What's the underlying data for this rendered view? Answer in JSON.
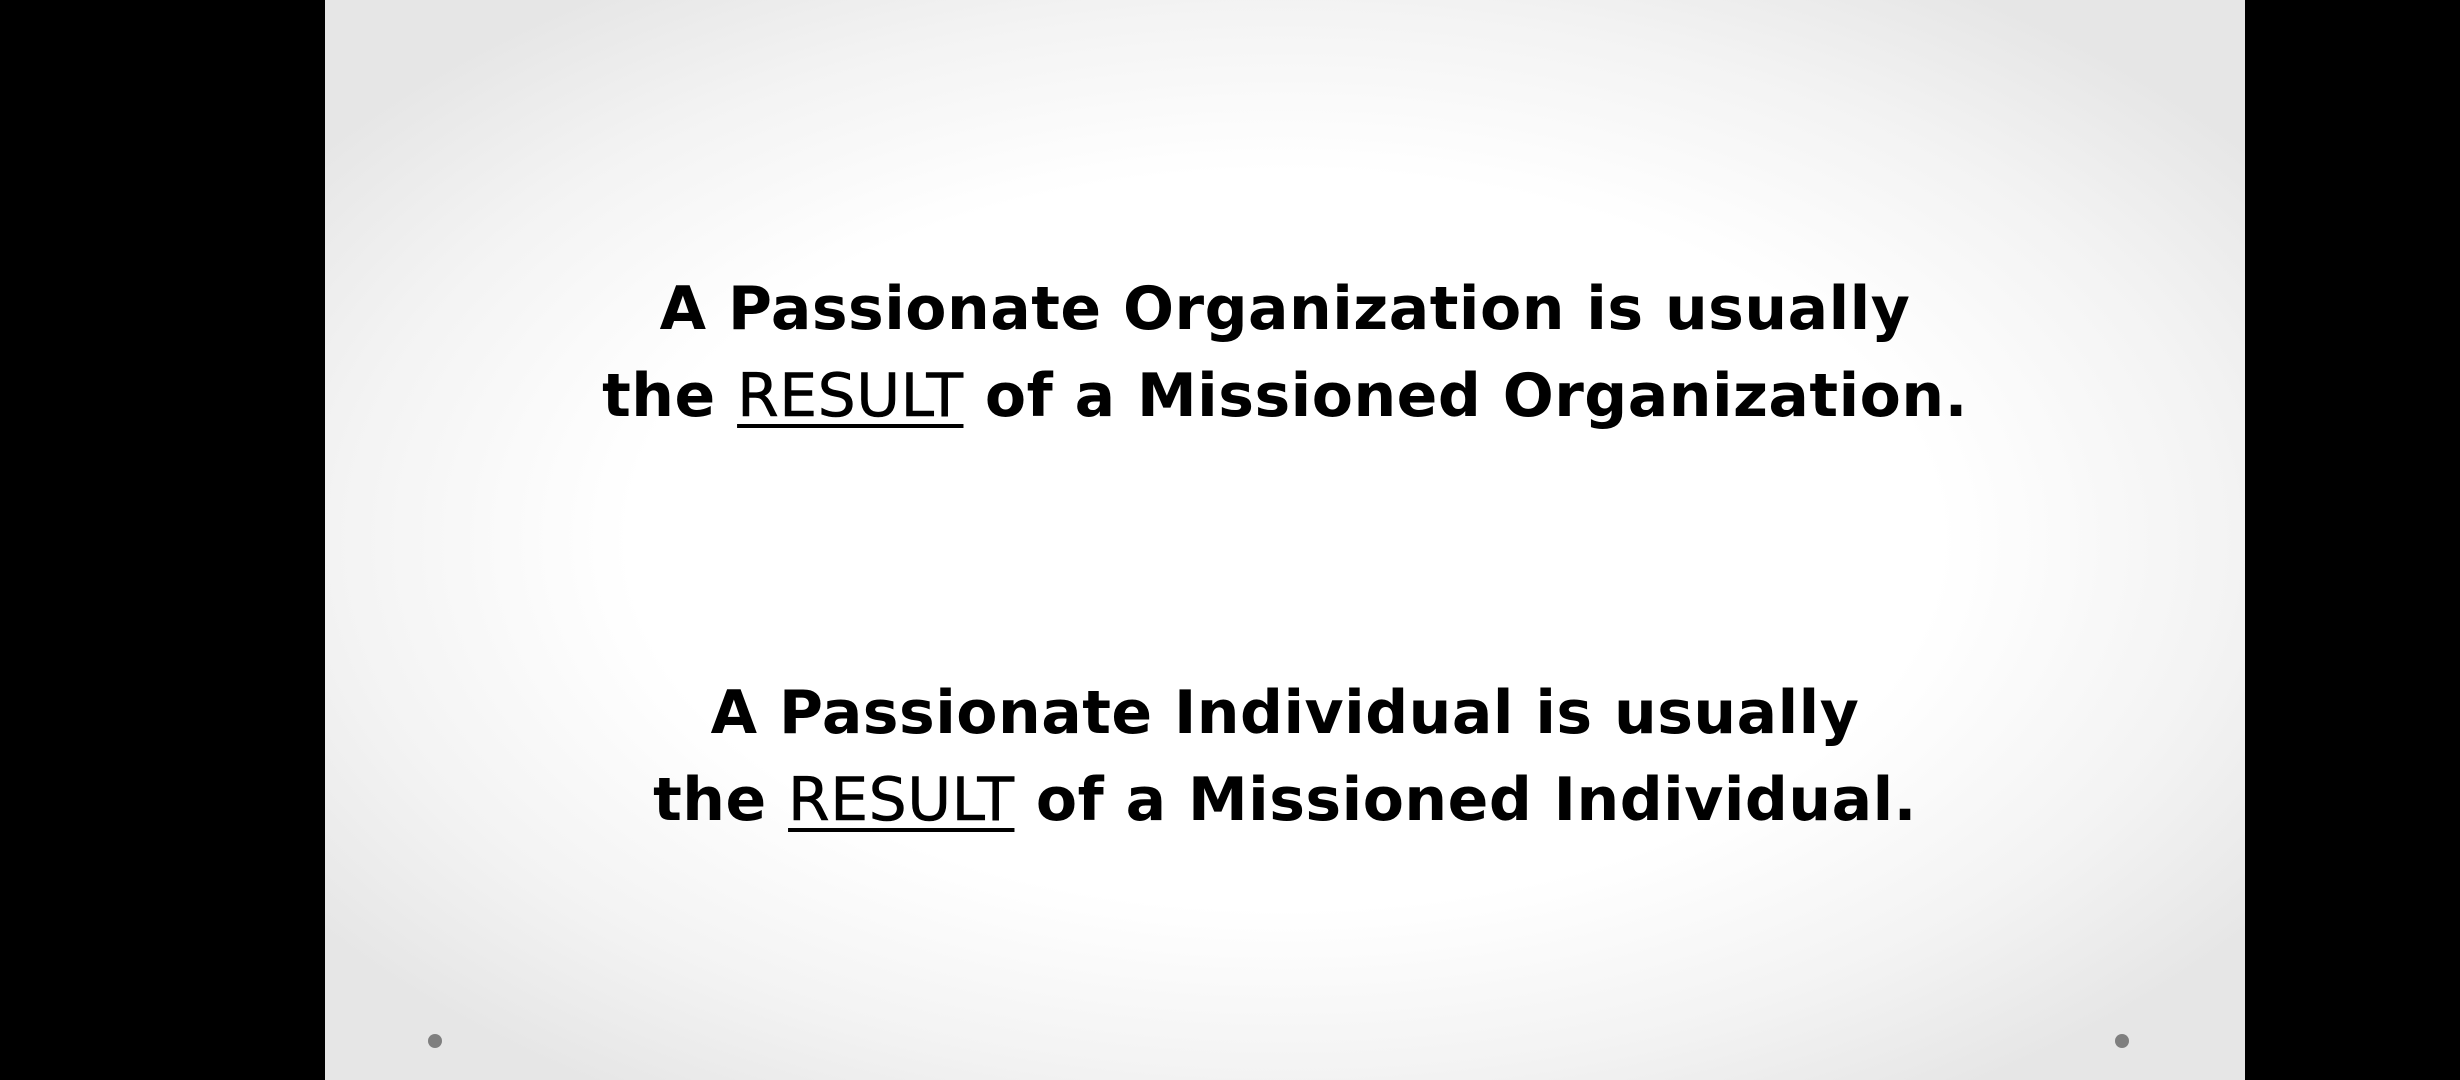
{
  "slide": {
    "statement_1": {
      "line_1": "A Passionate Organization is usually",
      "line_2_pre": "the ",
      "line_2_emph": "RESULT",
      "line_2_post": " of a Missioned Organization."
    },
    "statement_2": {
      "line_1": "A Passionate Individual is usually",
      "line_2_pre": "the ",
      "line_2_emph": "RESULT",
      "line_2_post": " of a Missioned Individual."
    }
  },
  "colors": {
    "letterbox": "#000000",
    "text": "#000000",
    "slide_background": "#ffffff",
    "corner_dot": "#7f7f7f"
  }
}
